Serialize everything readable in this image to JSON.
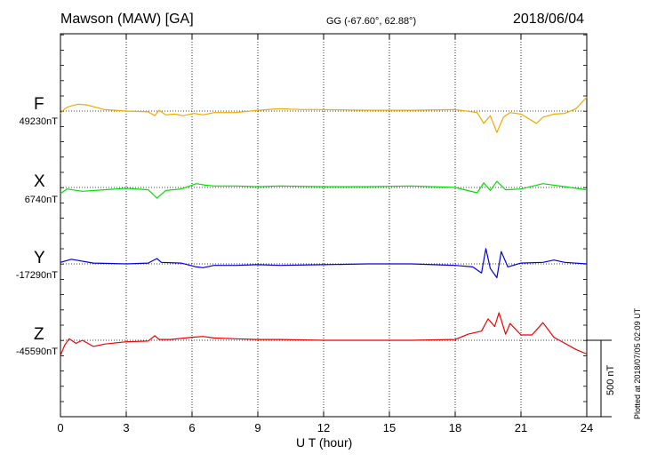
{
  "header": {
    "title": "Mawson (MAW)  [GA]",
    "coords": "GG (-67.60°,  62.88°)",
    "date": "2018/06/04"
  },
  "footer": {
    "xlabel": "U T (hour)",
    "plotted": "Plotted at 2018/07/05 02:09 UT",
    "scale_label": "500 nT"
  },
  "colors": {
    "F": "#f2a900",
    "X": "#00e000",
    "Y": "#0000dd",
    "Z": "#ee0000",
    "axis": "#000000"
  },
  "chart_data": {
    "type": "line",
    "xlabel": "U T (hour)",
    "xlim": [
      0,
      24
    ],
    "xticks": [
      "0",
      "3",
      "6",
      "9",
      "12",
      "15",
      "18",
      "21",
      "24"
    ],
    "scale_bar_nT": 500,
    "series": [
      {
        "name": "F",
        "baseline_label": "49230nT",
        "x": [
          0,
          0.2,
          0.4,
          0.8,
          1.2,
          2,
          3,
          4,
          4.3,
          4.5,
          4.8,
          5.2,
          5.6,
          6.1,
          6.5,
          7,
          8,
          9,
          10,
          11,
          12,
          14,
          16,
          18,
          19,
          19.3,
          19.6,
          19.9,
          20.2,
          20.5,
          21,
          21.7,
          22,
          22.5,
          23,
          23.5,
          23.8,
          24
        ],
        "values": [
          -15,
          15,
          30,
          45,
          40,
          10,
          0,
          -5,
          -30,
          5,
          -25,
          -20,
          -30,
          -15,
          -25,
          -10,
          -10,
          5,
          15,
          10,
          10,
          5,
          5,
          10,
          -10,
          -80,
          -30,
          -140,
          -40,
          -10,
          -20,
          -80,
          -40,
          -20,
          -15,
          15,
          60,
          90
        ]
      },
      {
        "name": "X",
        "baseline_label": "6740nT",
        "x": [
          0,
          0.3,
          1,
          2,
          3,
          4,
          4.4,
          4.8,
          5.5,
          6.2,
          6.6,
          7,
          8,
          9,
          10,
          12,
          14,
          16,
          18,
          19,
          19.3,
          19.6,
          19.9,
          20.3,
          21,
          22,
          23,
          24
        ],
        "values": [
          -40,
          -10,
          -25,
          -15,
          -5,
          -15,
          -70,
          -20,
          -10,
          25,
          15,
          10,
          10,
          5,
          10,
          5,
          5,
          10,
          0,
          -35,
          30,
          -20,
          40,
          -15,
          -10,
          25,
          5,
          -15
        ]
      },
      {
        "name": "Y",
        "baseline_label": "-17290nT",
        "x": [
          0,
          0.5,
          1.5,
          3,
          4,
          4.4,
          4.6,
          5.5,
          6.2,
          6.5,
          7,
          8,
          9,
          10,
          12,
          14,
          16,
          18,
          18.8,
          19.2,
          19.4,
          19.6,
          19.9,
          20.1,
          20.4,
          21,
          22,
          22.5,
          23,
          24
        ],
        "values": [
          10,
          30,
          5,
          0,
          5,
          35,
          10,
          5,
          -20,
          -25,
          -10,
          -10,
          -5,
          -10,
          -5,
          0,
          0,
          -10,
          -20,
          -60,
          100,
          -30,
          -90,
          80,
          -20,
          5,
          10,
          25,
          10,
          0
        ]
      },
      {
        "name": "Z",
        "baseline_label": "-45590nT",
        "x": [
          0,
          0.2,
          0.4,
          0.7,
          1,
          1.5,
          2,
          3,
          4,
          4.3,
          4.5,
          5,
          6,
          6.5,
          7,
          8,
          9,
          10,
          12,
          14,
          16,
          18,
          18.6,
          19.2,
          19.5,
          19.8,
          20,
          20.3,
          20.5,
          21,
          21.5,
          22,
          22.5,
          23,
          23.5,
          24
        ],
        "values": [
          -100,
          -30,
          10,
          -20,
          0,
          -40,
          -25,
          -10,
          -5,
          30,
          5,
          5,
          20,
          25,
          15,
          10,
          5,
          5,
          0,
          0,
          0,
          5,
          40,
          60,
          140,
          90,
          180,
          40,
          110,
          35,
          35,
          115,
          20,
          -20,
          -60,
          -90
        ]
      }
    ]
  }
}
